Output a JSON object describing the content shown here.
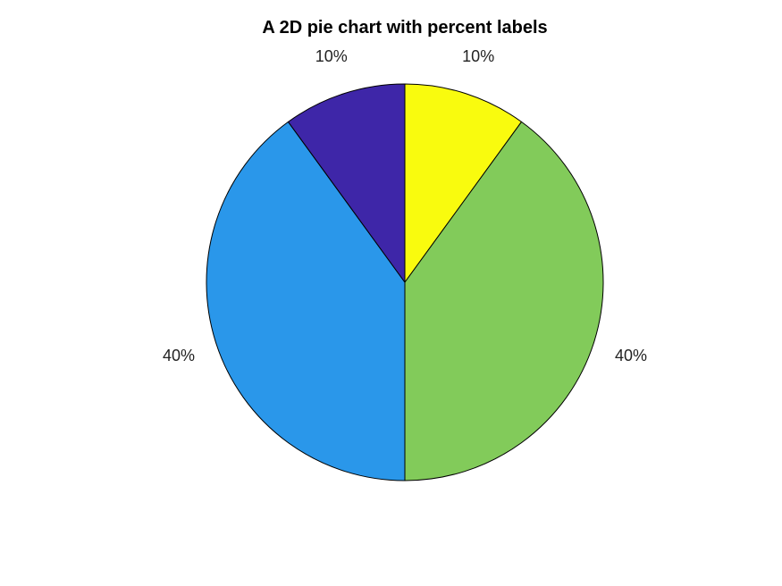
{
  "chart_data": {
    "type": "pie",
    "title": "A 2D pie chart with percent labels",
    "slices": [
      {
        "value": 10,
        "label": "10%",
        "color": "#F9FB0E"
      },
      {
        "value": 40,
        "label": "40%",
        "color": "#82CB5A"
      },
      {
        "value": 40,
        "label": "40%",
        "color": "#2A97EA"
      },
      {
        "value": 10,
        "label": "10%",
        "color": "#3E26A8"
      }
    ],
    "start_angle_deg": 0,
    "direction": "clockwise",
    "edge_color": "#000000"
  }
}
